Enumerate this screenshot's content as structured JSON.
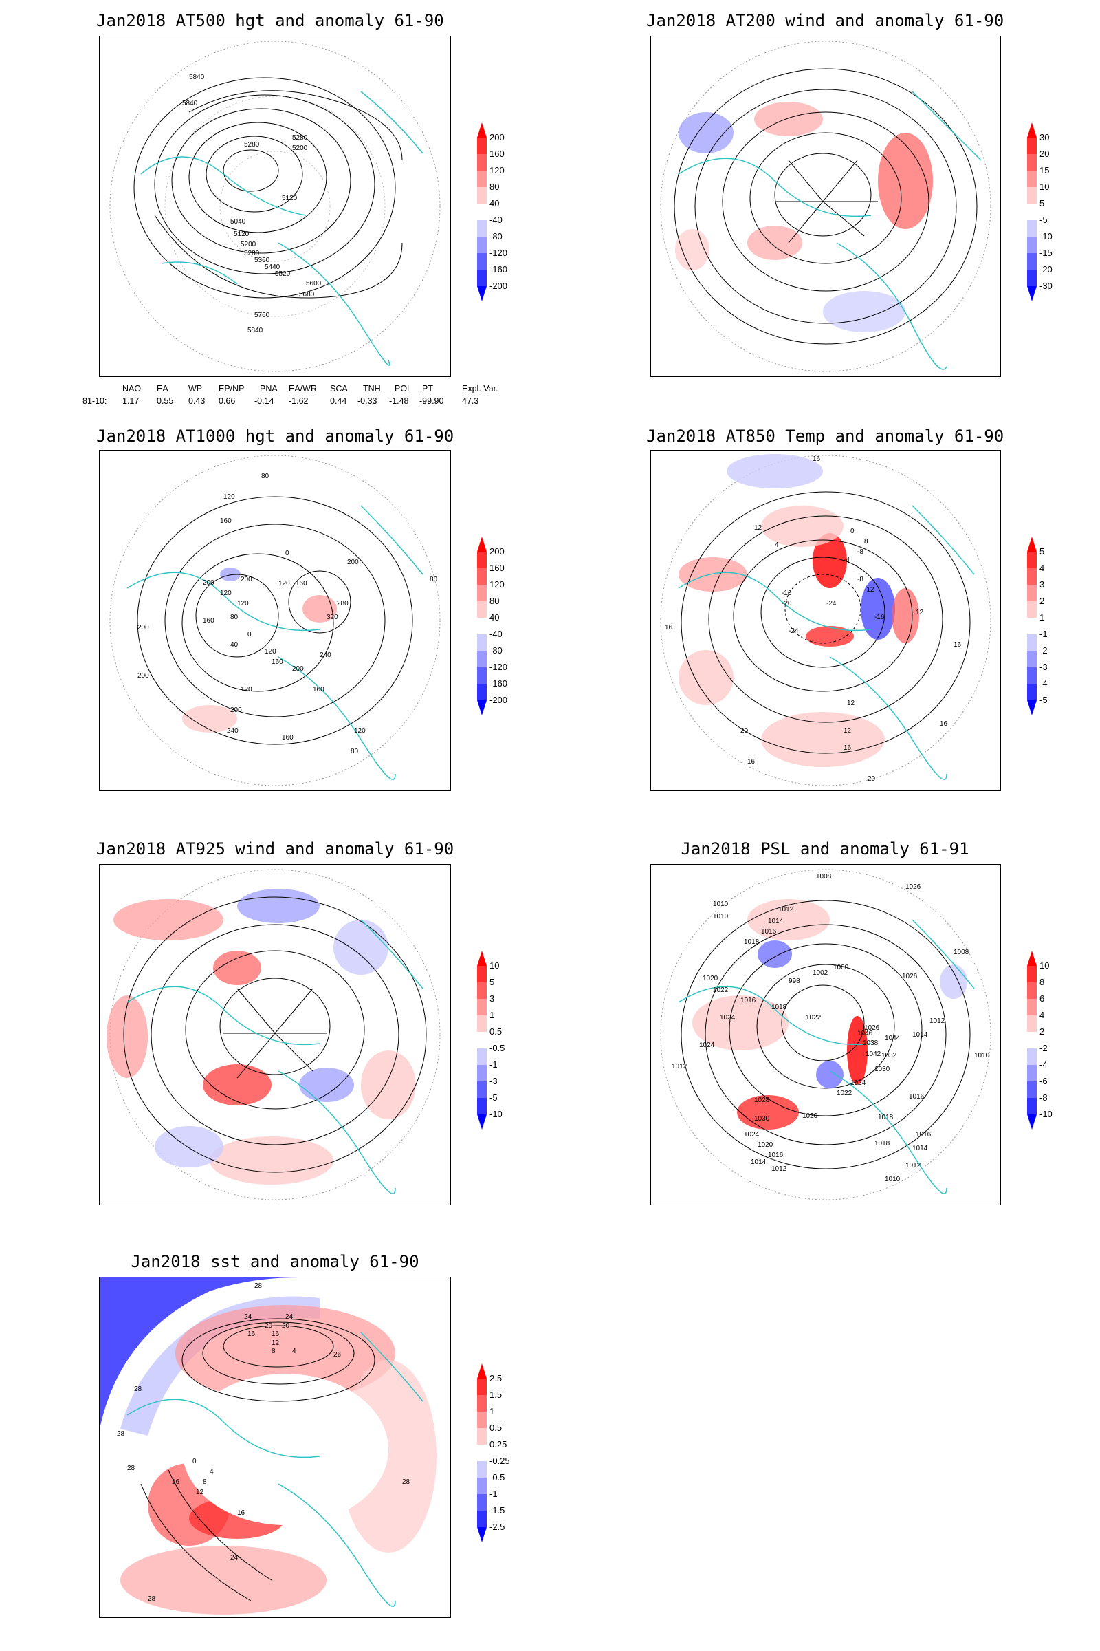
{
  "panels": [
    {
      "id": "p500",
      "title": "Jan2018 AT500 hgt and anomaly 61-90",
      "colorbar": [
        "200",
        "160",
        "120",
        "80",
        "40",
        "-40",
        "-80",
        "-120",
        "-160",
        "-200"
      ],
      "contour_labels": [
        "5840",
        "5840",
        "5280",
        "5280",
        "5200",
        "5120",
        "5040",
        "5120",
        "5200",
        "5280",
        "5360",
        "5440",
        "5520",
        "5600",
        "5680",
        "5760",
        "5840"
      ]
    },
    {
      "id": "p200",
      "title": "Jan2018 AT200 wind and anomaly 61-90",
      "colorbar": [
        "30",
        "20",
        "15",
        "10",
        "5",
        "-5",
        "-10",
        "-15",
        "-20",
        "-30"
      ],
      "contour_labels": []
    },
    {
      "id": "p1000",
      "title": "Jan2018 AT1000 hgt and anomaly 61-90",
      "colorbar": [
        "200",
        "160",
        "120",
        "80",
        "40",
        "-40",
        "-80",
        "-120",
        "-160",
        "-200"
      ],
      "contour_labels": [
        "80",
        "120",
        "160",
        "200",
        "0",
        "120",
        "160",
        "200",
        "280",
        "320",
        "200",
        "120",
        "240",
        "200",
        "120",
        "160",
        "200",
        "240",
        "160",
        "120",
        "80",
        "120",
        "160",
        "0",
        "80",
        "40",
        "120",
        "160",
        "200",
        "200",
        "80"
      ]
    },
    {
      "id": "p850",
      "title": "Jan2018 AT850 Temp and anomaly 61-90",
      "colorbar": [
        "5",
        "4",
        "3",
        "2",
        "1",
        "-1",
        "-2",
        "-3",
        "-4",
        "-5"
      ],
      "contour_labels": [
        "16",
        "12",
        "0",
        "4",
        "8",
        "-16",
        "-12",
        "-8",
        "-20",
        "-24",
        "-24",
        "-16",
        "12",
        "16",
        "16",
        "12",
        "16",
        "12",
        "16",
        "20",
        "16",
        "20",
        "-4",
        "-8"
      ]
    },
    {
      "id": "p925",
      "title": "Jan2018 AT925 wind and anomaly 61-90",
      "colorbar": [
        "10",
        "5",
        "3",
        "1",
        "0.5",
        "-0.5",
        "-1",
        "-3",
        "-5",
        "-10"
      ],
      "contour_labels": []
    },
    {
      "id": "ppsl",
      "title": "Jan2018 PSL and anomaly 61-91",
      "colorbar": [
        "10",
        "8",
        "6",
        "4",
        "2",
        "-2",
        "-4",
        "-6",
        "-8",
        "-10"
      ],
      "contour_labels": [
        "1008",
        "1026",
        "1010",
        "1012",
        "1014",
        "1016",
        "1018",
        "1010",
        "1008",
        "1002",
        "1000",
        "1020",
        "1026",
        "1022",
        "1016",
        "998",
        "1018",
        "1024",
        "1022",
        "1024",
        "1028",
        "1030",
        "1024",
        "1020",
        "1016",
        "1014",
        "1012",
        "1010",
        "1012",
        "1014",
        "1016",
        "1018",
        "1020",
        "1022",
        "1024",
        "1026",
        "1030",
        "1032",
        "1038",
        "1042",
        "1046",
        "1044",
        "1012",
        "1014",
        "1016",
        "1018",
        "1010",
        "1012"
      ]
    },
    {
      "id": "psst",
      "title": "Jan2018 sst and anomaly 61-90",
      "colorbar": [
        "2.5",
        "1.5",
        "1",
        "0.5",
        "0.25",
        "-0.25",
        "-0.5",
        "-1",
        "-1.5",
        "-2.5"
      ],
      "contour_labels": [
        "28",
        "24",
        "24",
        "20",
        "20",
        "16",
        "16",
        "12",
        "8",
        "4",
        "28",
        "28",
        "26",
        "16",
        "12",
        "8",
        "4",
        "0",
        "28",
        "28",
        "16",
        "24",
        "28"
      ]
    }
  ],
  "indices": {
    "headers": [
      "NAO",
      "EA",
      "WP",
      "EP/NP",
      "PNA",
      "EA/WR",
      "SCA",
      "TNH",
      "POL",
      "PT",
      "Expl. Var."
    ],
    "row_label": "81-10:",
    "values": [
      "1.17",
      "0.55",
      "0.43",
      "0.66",
      "-0.14",
      "-1.62",
      "0.44",
      "-0.33",
      "-1.48",
      "-99.90",
      "47.3"
    ]
  },
  "colors": {
    "coast": "#2ec4c4",
    "red_scale": [
      "#ff0000",
      "#ff3030",
      "#ff6060",
      "#ff9999",
      "#ffcccc"
    ],
    "blue_scale": [
      "#ccccff",
      "#9999ff",
      "#6060ff",
      "#3030ff",
      "#0000ff"
    ],
    "contour": "#000000"
  }
}
